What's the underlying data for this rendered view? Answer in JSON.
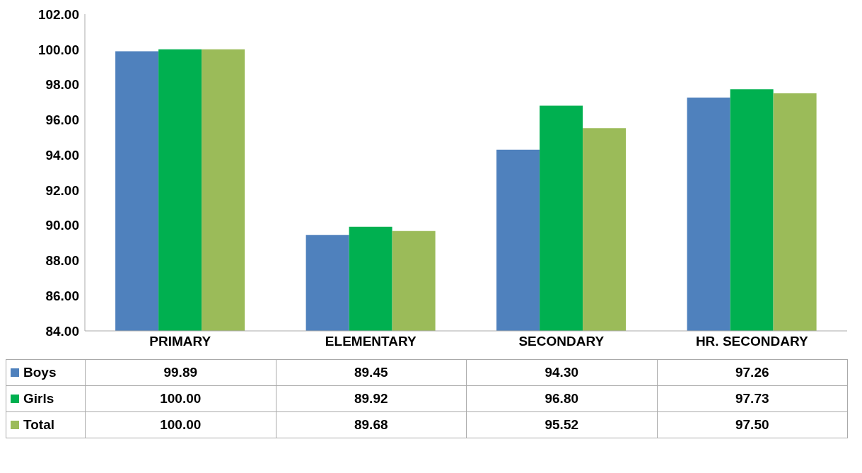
{
  "chart_data": {
    "type": "bar",
    "categories": [
      "PRIMARY",
      "ELEMENTARY",
      "SECONDARY",
      "HR. SECONDARY"
    ],
    "series": [
      {
        "name": "Boys",
        "color": "#4f81bd",
        "values": [
          99.89,
          89.45,
          94.3,
          97.26
        ],
        "value_labels": [
          "99.89",
          "89.45",
          "94.30",
          "97.26"
        ]
      },
      {
        "name": "Girls",
        "color": "#00b050",
        "values": [
          100,
          89.92,
          96.8,
          97.73
        ],
        "value_labels": [
          "100.00",
          "89.92",
          "96.80",
          "97.73"
        ]
      },
      {
        "name": "Total",
        "color": "#9bbb59",
        "values": [
          100,
          89.68,
          95.52,
          97.5
        ],
        "value_labels": [
          "100.00",
          "89.68",
          "95.52",
          "97.50"
        ]
      }
    ],
    "ylim": [
      84,
      102
    ],
    "yticks": [
      {
        "value": 84,
        "label": "84.00"
      },
      {
        "value": 86,
        "label": "86.00"
      },
      {
        "value": 88,
        "label": "88.00"
      },
      {
        "value": 90,
        "label": "90.00"
      },
      {
        "value": 92,
        "label": "92.00"
      },
      {
        "value": 94,
        "label": "94.00"
      },
      {
        "value": 96,
        "label": "96.00"
      },
      {
        "value": 98,
        "label": "98.00"
      },
      {
        "value": 100,
        "label": "100.00"
      },
      {
        "value": 102,
        "label": "102.00"
      }
    ],
    "grid": false,
    "legend": "bottom"
  }
}
